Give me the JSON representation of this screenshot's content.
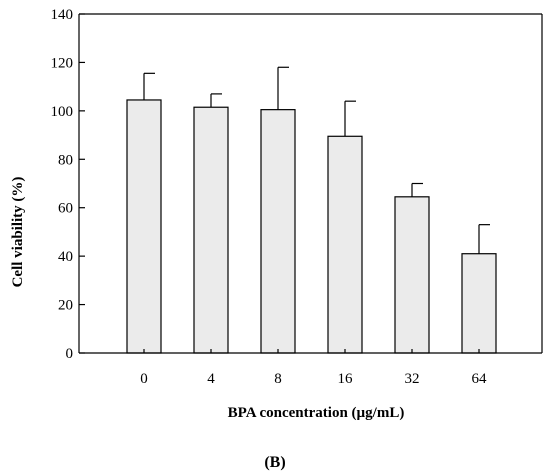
{
  "chart_data": {
    "type": "bar",
    "categories": [
      "0",
      "4",
      "8",
      "16",
      "32",
      "64"
    ],
    "values": [
      104.5,
      101.5,
      100.5,
      89.5,
      64.5,
      41.0
    ],
    "errors": [
      11.0,
      5.5,
      17.5,
      14.5,
      5.5,
      12.0
    ],
    "xlabel": "BPA concentration (µg/mL)",
    "ylabel": "Cell viability (%)",
    "ylim": [
      0,
      140
    ],
    "yticks": [
      0,
      20,
      40,
      60,
      80,
      100,
      120,
      140
    ],
    "panel_label": "(B)",
    "grid": false,
    "bar_color": "#ebebeb"
  }
}
